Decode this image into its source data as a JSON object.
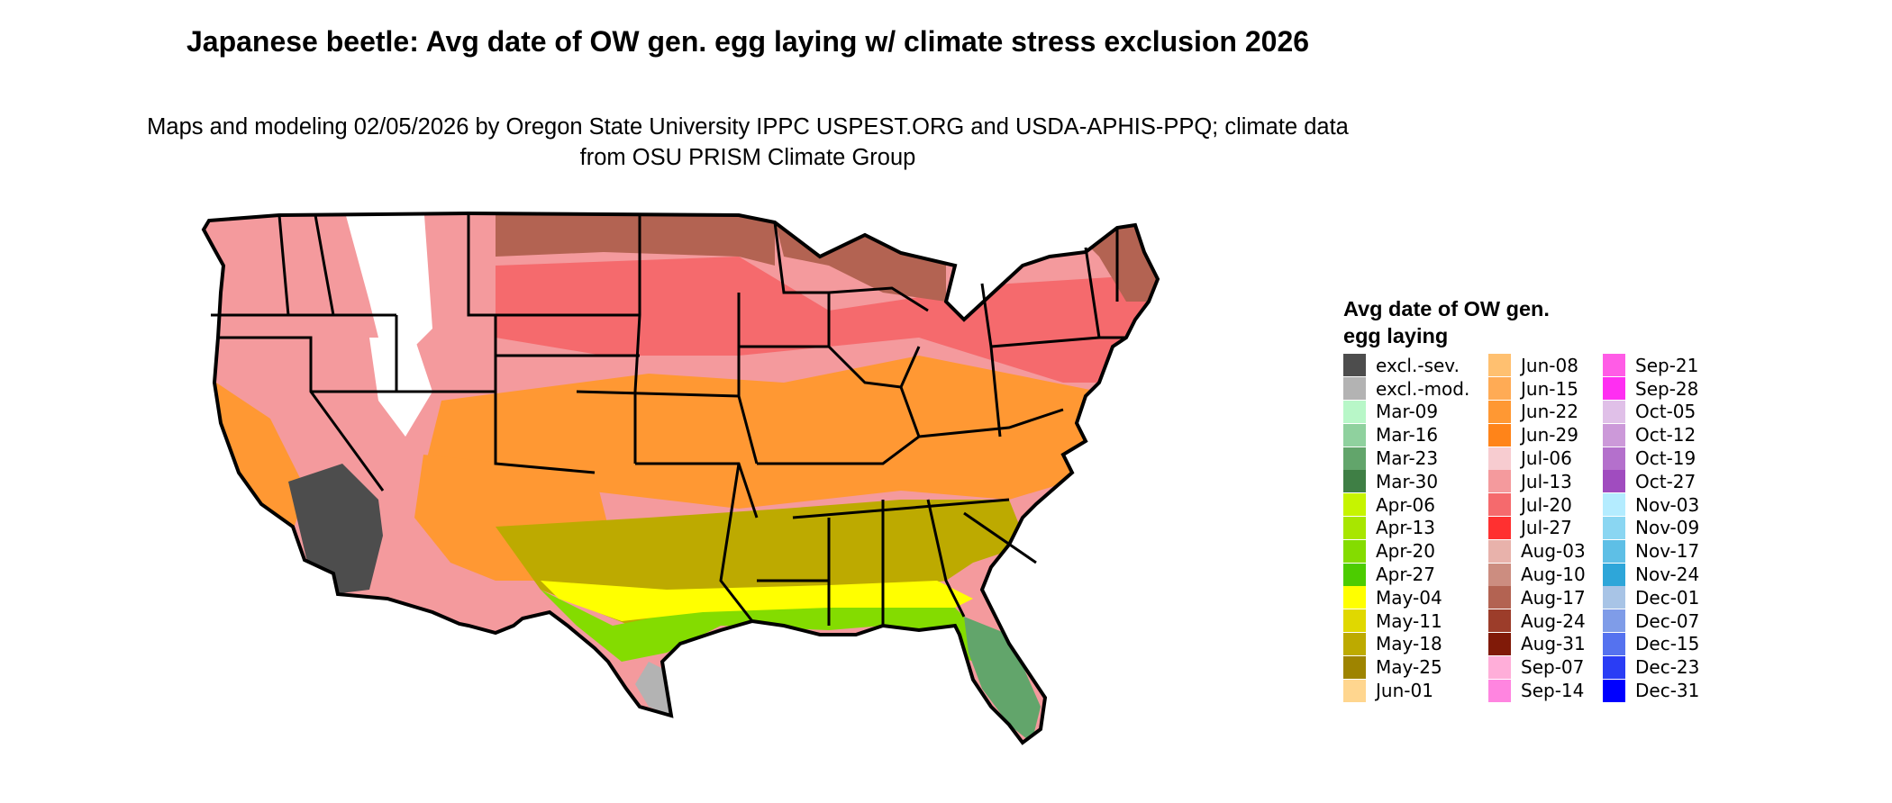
{
  "title": "Japanese beetle: Avg date of OW gen. egg laying w/ climate stress exclusion 2026",
  "subtitle": "Maps and modeling 02/05/2026 by Oregon State University IPPC USPEST.ORG and USDA-APHIS-PPQ; climate data from OSU PRISM Climate Group",
  "legend": {
    "title": "Avg date of OW gen. egg laying",
    "columns": [
      [
        {
          "label": "excl.-sev.",
          "color": "#4d4d4d"
        },
        {
          "label": "excl.-mod.",
          "color": "#b3b3b3"
        },
        {
          "label": "Mar-09",
          "color": "#b8f7c8"
        },
        {
          "label": "Mar-16",
          "color": "#8fd19e"
        },
        {
          "label": "Mar-23",
          "color": "#62a56b"
        },
        {
          "label": "Mar-30",
          "color": "#3f7f45"
        },
        {
          "label": "Apr-06",
          "color": "#c6f400"
        },
        {
          "label": "Apr-13",
          "color": "#a8e600"
        },
        {
          "label": "Apr-20",
          "color": "#84dc00"
        },
        {
          "label": "Apr-27",
          "color": "#4ccc00"
        },
        {
          "label": "May-04",
          "color": "#ffff00"
        },
        {
          "label": "May-11",
          "color": "#e0d800"
        },
        {
          "label": "May-18",
          "color": "#bdaa00"
        },
        {
          "label": "May-25",
          "color": "#9e8400"
        },
        {
          "label": "Jun-01",
          "color": "#ffd68f"
        }
      ],
      [
        {
          "label": "Jun-08",
          "color": "#ffc070"
        },
        {
          "label": "Jun-15",
          "color": "#ffab55"
        },
        {
          "label": "Jun-22",
          "color": "#ff9833"
        },
        {
          "label": "Jun-29",
          "color": "#ff8419"
        },
        {
          "label": "Jul-06",
          "color": "#f7ccd0"
        },
        {
          "label": "Jul-13",
          "color": "#f49a9d"
        },
        {
          "label": "Jul-20",
          "color": "#f56a6d"
        },
        {
          "label": "Jul-27",
          "color": "#ff3030"
        },
        {
          "label": "Aug-03",
          "color": "#e8b2ab"
        },
        {
          "label": "Aug-10",
          "color": "#cc8d80"
        },
        {
          "label": "Aug-17",
          "color": "#b36352"
        },
        {
          "label": "Aug-24",
          "color": "#9c3d2a"
        },
        {
          "label": "Aug-31",
          "color": "#801a08"
        },
        {
          "label": "Sep-07",
          "color": "#ffaed9"
        },
        {
          "label": "Sep-14",
          "color": "#ff85e0"
        }
      ],
      [
        {
          "label": "Sep-21",
          "color": "#ff5ce6"
        },
        {
          "label": "Sep-28",
          "color": "#ff2ef2"
        },
        {
          "label": "Oct-05",
          "color": "#e0c0e8"
        },
        {
          "label": "Oct-12",
          "color": "#cc99d9"
        },
        {
          "label": "Oct-19",
          "color": "#b470cc"
        },
        {
          "label": "Oct-27",
          "color": "#a04cbf"
        },
        {
          "label": "Nov-03",
          "color": "#b4ecff"
        },
        {
          "label": "Nov-09",
          "color": "#8ad6f2"
        },
        {
          "label": "Nov-17",
          "color": "#5ebfe6"
        },
        {
          "label": "Nov-24",
          "color": "#2ea6d9"
        },
        {
          "label": "Dec-01",
          "color": "#a8c4e6"
        },
        {
          "label": "Dec-07",
          "color": "#7f9ce8"
        },
        {
          "label": "Dec-15",
          "color": "#5572ef"
        },
        {
          "label": "Dec-23",
          "color": "#2a3df5"
        },
        {
          "label": "Dec-31",
          "color": "#0000ff"
        }
      ]
    ]
  },
  "map_colors": {
    "outline": "#000000",
    "ocean": "#ffffff",
    "excluded_high": "#ffffff",
    "upper_midwest": "#f56a6d",
    "north": "#f49a9d",
    "northern_brown": "#b36352",
    "mid_south": "#ff9833",
    "deep_south": "#bdaa00",
    "gulf": "#84dc00",
    "florida": "#62a56b",
    "desert": "#4d4d4d"
  }
}
